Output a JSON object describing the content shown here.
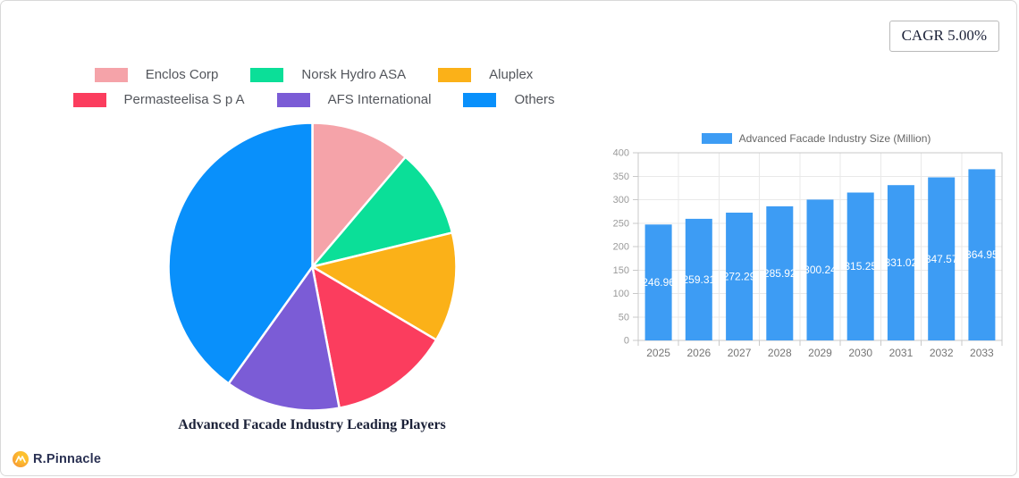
{
  "cagr_badge": {
    "label": "CAGR 5.00%"
  },
  "brand": {
    "name": "R.Pinnacle"
  },
  "chart_data": [
    {
      "type": "pie",
      "title": "Advanced Facade Industry Leading Players",
      "legend_position": "top",
      "series": [
        {
          "label": "Enclos Corp",
          "value": 11.2,
          "color": "#F5A3A9"
        },
        {
          "label": "Norsk Hydro ASA",
          "value": 10.0,
          "color": "#0BDF98"
        },
        {
          "label": "Aluplex",
          "value": 12.3,
          "color": "#FBB118"
        },
        {
          "label": "Permasteelisa S p A",
          "value": 13.5,
          "color": "#FB3D5E"
        },
        {
          "label": "AFS International",
          "value": 12.9,
          "color": "#7B5CD6"
        },
        {
          "label": "Others",
          "value": 40.1,
          "color": "#0990FB"
        }
      ],
      "legend_rows": [
        [
          0,
          1,
          2
        ],
        [
          3,
          4,
          5
        ]
      ]
    },
    {
      "type": "bar",
      "legend": "Advanced Facade Industry Size (Million)",
      "categories": [
        "2025",
        "2026",
        "2027",
        "2028",
        "2029",
        "2030",
        "2031",
        "2032",
        "2033"
      ],
      "values": [
        246.96,
        259.31,
        272.29,
        285.92,
        300.24,
        315.25,
        331.02,
        347.57,
        364.95
      ],
      "bar_color": "#3D9CF4",
      "value_label_color": "#ffffff",
      "ylim": [
        0,
        400
      ],
      "ytick_step": 50,
      "grid": true,
      "legend_position": "top"
    }
  ],
  "colors": {
    "grid": "#E9E9E9",
    "axis_border": "#C9C9C9",
    "y_tick_label": "#9A9A9A",
    "x_tick_label": "#757575",
    "pie_slice_gap": "#FFFFFF"
  }
}
